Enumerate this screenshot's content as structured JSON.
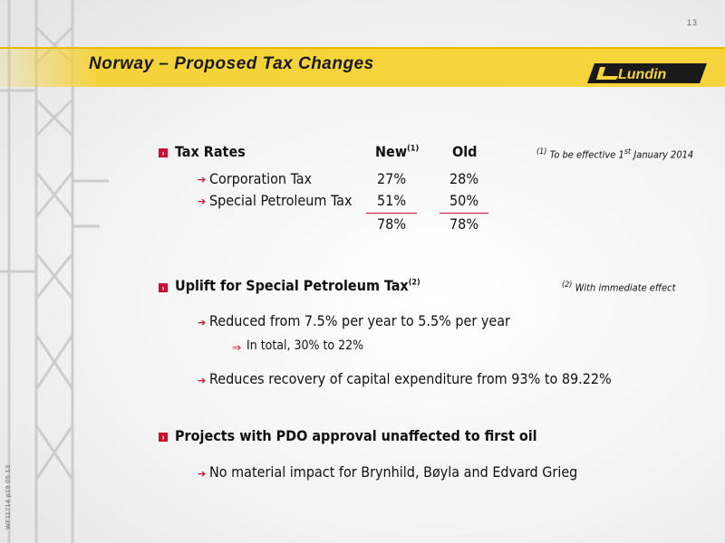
{
  "page_number": "13",
  "title": "Norway – Proposed Tax Changes",
  "logo_text": "Lundin",
  "side_code": "WF11714 p19 05.13",
  "tax_rates": {
    "heading": "Tax  Rates",
    "col_new": "New",
    "col_new_sup": "(1)",
    "col_old": "Old",
    "note_sup": "(1)",
    "note_text": "To be effective 1",
    "note_sup2": "st",
    "note_text2": "January 2014",
    "rows": [
      {
        "label": "Corporation Tax",
        "new": "27%",
        "old": "28%"
      },
      {
        "label": "Special Petroleum Tax",
        "new": "51%",
        "old": "50%"
      }
    ],
    "total_new": "78%",
    "total_old": "78%"
  },
  "uplift": {
    "heading": "Uplift for Special Petroleum Tax",
    "heading_sup": "(2)",
    "note_sup": "(2)",
    "note_text": "With immediate effect",
    "items": [
      "Reduced from 7.5% per year to 5.5% per year",
      "In total, 30% to 22%",
      "Reduces recovery of capital expenditure from 93% to 89.22%"
    ]
  },
  "projects": {
    "heading": "Projects with PDO approval unaffected to first oil",
    "items": [
      "No material impact for Brynhild, Bøyla and Edvard Grieg"
    ]
  },
  "colors": {
    "banner": "#f6d53c",
    "accent": "#c8102e"
  }
}
